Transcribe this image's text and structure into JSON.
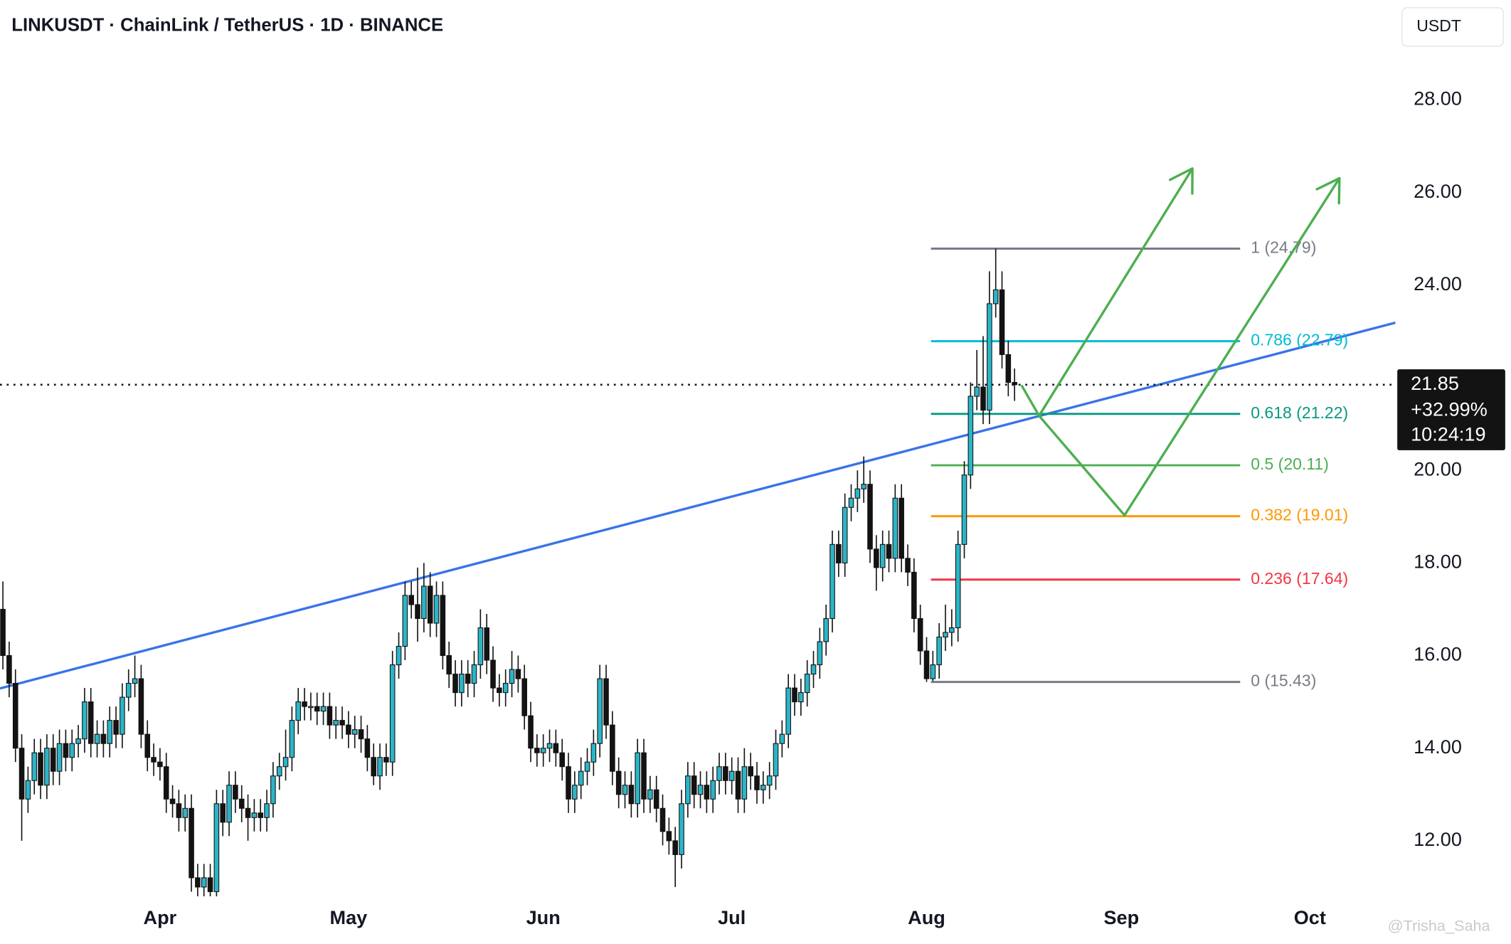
{
  "chart_data": {
    "type": "candlestick",
    "title": "LINKUSDT · ChainLink / TetherUS · 1D · BINANCE",
    "currency_button": "USDT",
    "watermark": "@Trisha_Saha",
    "up_color": "#2bb5c8",
    "down_color": "#131313",
    "xlim": [
      -0.46,
      221.6
    ],
    "ylim": [
      10.81,
      30.16
    ],
    "xticks": [
      {
        "value": 25,
        "label": "Apr"
      },
      {
        "value": 55,
        "label": "May"
      },
      {
        "value": 86,
        "label": "Jun"
      },
      {
        "value": 116,
        "label": "Jul"
      },
      {
        "value": 147,
        "label": "Aug"
      },
      {
        "value": 178,
        "label": "Sep"
      },
      {
        "value": 208,
        "label": "Oct"
      }
    ],
    "yticks": [
      {
        "value": 12,
        "label": "12.00"
      },
      {
        "value": 14,
        "label": "14.00"
      },
      {
        "value": 16,
        "label": "16.00"
      },
      {
        "value": 18,
        "label": "18.00"
      },
      {
        "value": 20,
        "label": "20.00"
      },
      {
        "value": 24,
        "label": "24.00"
      },
      {
        "value": 26,
        "label": "26.00"
      },
      {
        "value": 28,
        "label": "28.00"
      }
    ],
    "open": [
      17.0,
      16.0,
      15.4,
      14.0,
      12.9,
      13.3,
      13.9,
      13.2,
      14.0,
      13.5,
      14.1,
      13.8,
      14.1,
      14.2,
      15.0,
      14.1,
      14.3,
      14.1,
      14.6,
      14.3,
      15.1,
      15.4,
      15.5,
      14.3,
      13.8,
      13.7,
      13.6,
      12.9,
      12.8,
      12.5,
      12.7,
      11.2,
      11.0,
      11.2,
      10.9,
      12.8,
      12.4,
      13.2,
      12.9,
      12.7,
      12.5,
      12.6,
      12.5,
      12.8,
      13.4,
      13.6,
      13.8,
      14.6,
      15.0,
      14.9,
      14.9,
      14.8,
      14.9,
      14.5,
      14.6,
      14.5,
      14.3,
      14.4,
      14.2,
      13.8,
      13.4,
      13.8,
      13.7,
      15.8,
      16.2,
      17.3,
      17.1,
      16.8,
      17.5,
      16.7,
      17.3,
      16.0,
      15.6,
      15.2,
      15.6,
      15.4,
      15.8,
      16.6,
      15.9,
      15.3,
      15.2,
      15.4,
      15.7,
      15.5,
      14.7,
      14.0,
      13.9,
      14.0,
      14.1,
      13.9,
      13.6,
      12.9,
      13.2,
      13.5,
      13.7,
      14.1,
      15.5,
      14.5,
      13.5,
      13.0,
      13.2,
      12.8,
      13.9,
      12.9,
      13.1,
      12.7,
      12.2,
      12.0,
      11.7,
      12.8,
      13.4,
      13.0,
      13.2,
      12.9,
      13.3,
      13.6,
      13.3,
      13.5,
      12.9,
      13.6,
      13.4,
      13.1,
      13.2,
      13.4,
      14.1,
      14.3,
      15.3,
      15.0,
      15.2,
      15.6,
      15.8,
      16.3,
      16.8,
      18.4,
      18.0,
      19.2,
      19.4,
      19.6,
      19.7,
      18.3,
      17.9,
      18.4,
      18.1,
      19.4,
      18.1,
      17.8,
      16.8,
      16.1,
      15.5,
      15.8,
      16.4,
      16.5,
      16.6,
      18.4,
      19.9,
      21.6,
      21.8,
      21.3,
      23.6,
      23.9,
      22.5,
      21.9
    ],
    "high": [
      17.6,
      16.3,
      15.7,
      14.3,
      13.6,
      14.2,
      14.2,
      14.3,
      14.3,
      14.4,
      14.4,
      14.4,
      14.5,
      15.3,
      15.3,
      14.6,
      14.6,
      14.9,
      14.9,
      15.4,
      15.7,
      16.0,
      15.8,
      14.6,
      14.1,
      14.0,
      13.9,
      13.2,
      13.1,
      13.0,
      13.0,
      11.5,
      11.5,
      11.5,
      13.1,
      13.1,
      13.5,
      13.5,
      13.2,
      13.0,
      12.9,
      12.9,
      13.1,
      13.7,
      13.9,
      14.4,
      14.9,
      15.3,
      15.3,
      15.2,
      15.2,
      15.2,
      15.2,
      14.9,
      14.9,
      14.8,
      14.7,
      14.7,
      14.5,
      14.1,
      14.1,
      14.1,
      16.1,
      16.5,
      17.6,
      17.6,
      17.9,
      18.0,
      17.8,
      17.6,
      17.6,
      16.3,
      15.9,
      15.9,
      15.9,
      16.1,
      17.0,
      16.9,
      16.2,
      15.6,
      15.7,
      16.1,
      16.0,
      15.8,
      15.0,
      14.3,
      14.3,
      14.4,
      14.4,
      14.2,
      13.9,
      13.5,
      13.8,
      14.0,
      14.4,
      15.8,
      15.8,
      14.8,
      13.8,
      13.5,
      13.5,
      14.2,
      14.2,
      13.4,
      13.4,
      13.0,
      12.5,
      12.3,
      13.1,
      13.7,
      13.7,
      13.5,
      13.5,
      13.6,
      13.9,
      13.9,
      13.8,
      13.8,
      14.0,
      13.9,
      13.7,
      13.5,
      13.7,
      14.4,
      14.6,
      15.6,
      15.6,
      15.5,
      15.9,
      16.1,
      16.6,
      17.1,
      18.7,
      18.7,
      19.5,
      19.7,
      20.0,
      20.3,
      20.0,
      18.6,
      18.7,
      18.7,
      19.7,
      19.7,
      18.4,
      18.1,
      17.1,
      16.4,
      16.1,
      16.7,
      17.1,
      17.0,
      18.7,
      20.2,
      21.9,
      22.6,
      22.9,
      24.3,
      24.79,
      24.3,
      22.8,
      22.2
    ],
    "low": [
      15.7,
      15.1,
      13.7,
      12.0,
      12.6,
      13.0,
      12.9,
      12.9,
      13.2,
      13.2,
      13.5,
      13.5,
      13.8,
      13.9,
      13.8,
      13.8,
      13.8,
      13.8,
      14.0,
      14.0,
      14.8,
      15.1,
      14.0,
      13.5,
      13.4,
      13.3,
      12.6,
      12.5,
      12.2,
      12.2,
      10.9,
      10.8,
      10.8,
      10.8,
      10.8,
      12.1,
      12.1,
      12.6,
      12.4,
      12.0,
      12.2,
      12.2,
      12.2,
      12.5,
      13.1,
      13.3,
      13.5,
      14.3,
      14.6,
      14.6,
      14.5,
      14.5,
      14.2,
      14.2,
      14.2,
      14.0,
      14.0,
      13.9,
      13.5,
      13.2,
      13.1,
      13.4,
      13.4,
      15.5,
      15.9,
      16.8,
      16.3,
      16.5,
      16.4,
      16.4,
      15.7,
      15.3,
      14.9,
      14.9,
      15.1,
      15.1,
      15.5,
      15.6,
      15.0,
      14.9,
      14.9,
      15.1,
      15.2,
      14.4,
      13.7,
      13.6,
      13.6,
      13.7,
      13.6,
      13.3,
      12.6,
      12.6,
      12.9,
      13.2,
      13.4,
      13.8,
      14.2,
      13.2,
      12.7,
      12.7,
      12.5,
      12.5,
      12.6,
      12.6,
      12.4,
      11.9,
      11.7,
      11.0,
      11.4,
      12.5,
      12.7,
      12.7,
      12.6,
      12.6,
      13.0,
      13.0,
      13.0,
      12.6,
      12.6,
      13.1,
      12.8,
      12.8,
      12.9,
      13.1,
      13.8,
      14.0,
      14.7,
      14.7,
      14.9,
      15.3,
      15.5,
      16.0,
      16.5,
      17.7,
      17.7,
      18.9,
      19.1,
      19.3,
      18.0,
      17.4,
      17.6,
      17.8,
      17.8,
      17.8,
      17.5,
      16.5,
      15.8,
      15.43,
      15.45,
      15.5,
      16.1,
      16.2,
      16.3,
      18.1,
      19.6,
      21.3,
      21.0,
      21.0,
      23.3,
      22.2,
      21.6,
      21.5
    ],
    "close": [
      16.0,
      15.4,
      14.0,
      12.9,
      13.3,
      13.9,
      13.2,
      14.0,
      13.5,
      14.1,
      13.8,
      14.1,
      14.2,
      15.0,
      14.1,
      14.3,
      14.1,
      14.6,
      14.3,
      15.1,
      15.4,
      15.5,
      14.3,
      13.8,
      13.7,
      13.6,
      12.9,
      12.8,
      12.5,
      12.7,
      11.2,
      11.0,
      11.2,
      10.9,
      12.8,
      12.4,
      13.2,
      12.9,
      12.7,
      12.5,
      12.6,
      12.5,
      12.8,
      13.4,
      13.6,
      13.8,
      14.6,
      15.0,
      14.9,
      14.9,
      14.8,
      14.9,
      14.5,
      14.6,
      14.5,
      14.3,
      14.4,
      14.2,
      13.8,
      13.4,
      13.8,
      13.7,
      15.8,
      16.2,
      17.3,
      17.1,
      16.8,
      17.5,
      16.7,
      17.3,
      16.0,
      15.6,
      15.2,
      15.6,
      15.4,
      15.8,
      16.6,
      15.9,
      15.3,
      15.2,
      15.4,
      15.7,
      15.5,
      14.7,
      14.0,
      13.9,
      14.0,
      14.1,
      13.9,
      13.6,
      12.9,
      13.2,
      13.5,
      13.7,
      14.1,
      15.5,
      14.5,
      13.5,
      13.0,
      13.2,
      12.8,
      13.9,
      12.9,
      13.1,
      12.7,
      12.2,
      12.0,
      11.7,
      12.8,
      13.4,
      13.0,
      13.2,
      12.9,
      13.3,
      13.6,
      13.3,
      13.5,
      12.9,
      13.6,
      13.4,
      13.1,
      13.2,
      13.4,
      14.1,
      14.3,
      15.3,
      15.0,
      15.2,
      15.6,
      15.8,
      16.3,
      16.8,
      18.4,
      18.0,
      19.2,
      19.4,
      19.6,
      19.7,
      18.3,
      17.9,
      18.4,
      18.1,
      19.4,
      18.1,
      17.8,
      16.8,
      16.1,
      15.5,
      15.8,
      16.4,
      16.5,
      16.6,
      18.4,
      19.9,
      21.6,
      21.8,
      21.3,
      23.6,
      23.9,
      22.5,
      21.9,
      21.85
    ],
    "last_price": {
      "value": 21.85,
      "change": "+32.99%",
      "countdown": "10:24:19"
    },
    "fib_range": [
      147.7,
      196.9
    ],
    "fib_levels": [
      {
        "price": 24.79,
        "label": "1 (24.79)",
        "color": "#787b86"
      },
      {
        "price": 22.79,
        "label": "0.786 (22.79)",
        "color": "#00bcd4"
      },
      {
        "price": 21.22,
        "label": "0.618 (21.22)",
        "color": "#089981"
      },
      {
        "price": 20.11,
        "label": "0.5 (20.11)",
        "color": "#4caf50"
      },
      {
        "price": 19.01,
        "label": "0.382 (19.01)",
        "color": "#ff9800"
      },
      {
        "price": 17.64,
        "label": "0.236 (17.64)",
        "color": "#f23645"
      },
      {
        "price": 15.43,
        "label": "0 (15.43)",
        "color": "#787b86"
      }
    ],
    "trendline": {
      "x": [
        -0.46,
        221.6
      ],
      "y": [
        15.29,
        23.19
      ],
      "color": "#3a73e8"
    },
    "arrows": [
      {
        "x": [
          162.1,
          164.9,
          189.3
        ],
        "y": [
          21.84,
          21.18,
          26.52
        ],
        "color": "#4caf50"
      },
      {
        "x": [
          164.9,
          178.5,
          212.7
        ],
        "y": [
          21.18,
          19.03,
          26.31
        ],
        "color": "#4caf50"
      }
    ]
  }
}
